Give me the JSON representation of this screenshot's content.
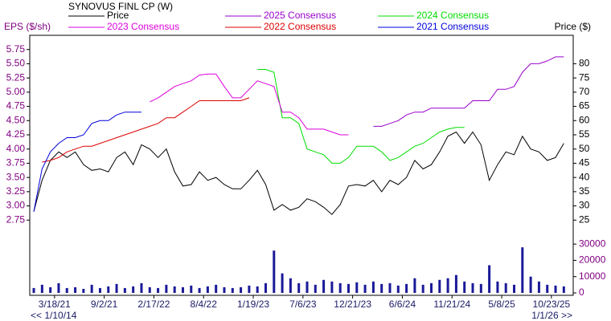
{
  "chart_data": [
    {
      "type": "line",
      "title": "SYNOVUS FINL CP (W)",
      "y_label": "EPS ($/sh)",
      "y2_label": "Price ($)",
      "x": [
        "1/7/21",
        "2/4/21",
        "3/4/21",
        "4/1/21",
        "4/29/21",
        "5/27/21",
        "6/24/21",
        "7/22/21",
        "8/19/21",
        "9/16/21",
        "10/14/21",
        "11/11/21",
        "12/9/21",
        "1/6/22",
        "2/3/22",
        "3/3/22",
        "3/31/22",
        "4/28/22",
        "5/26/22",
        "6/23/22",
        "7/21/22",
        "8/18/22",
        "9/15/22",
        "10/13/22",
        "11/10/22",
        "12/8/22",
        "1/5/23",
        "2/2/23",
        "3/2/23",
        "3/30/23",
        "4/27/23",
        "5/25/23",
        "6/22/23",
        "7/20/23",
        "8/17/23",
        "9/14/23",
        "10/12/23",
        "11/9/23",
        "12/7/23",
        "1/4/24",
        "2/1/24",
        "2/29/24",
        "3/28/24",
        "4/25/24",
        "5/23/24",
        "6/20/24",
        "7/18/24",
        "8/15/24",
        "9/12/24",
        "10/10/24",
        "11/7/24",
        "12/5/24",
        "1/2/25",
        "1/30/25",
        "2/27/25",
        "3/27/25",
        "4/24/25",
        "5/22/25",
        "6/19/25",
        "7/17/25",
        "8/14/25",
        "9/11/25",
        "10/9/25",
        "11/6/25",
        "12/4/25"
      ],
      "xlim": [
        "12/27/20",
        "1/2/26"
      ],
      "xticks": [
        "3/18/21",
        "9/2/21",
        "2/17/22",
        "8/4/22",
        "1/19/23",
        "7/6/23",
        "12/21/23",
        "6/6/24",
        "11/21/24",
        "5/8/25",
        "10/23/25"
      ],
      "ylim": [
        2.5,
        6.0
      ],
      "yticks": [
        2.75,
        {
          "value": 3.0,
          "label": "3.00"
        },
        3.25,
        {
          "value": 3.5,
          "label": "3.50"
        },
        3.75,
        {
          "value": 4.0,
          "label": "4.00"
        },
        4.25,
        {
          "value": 4.5,
          "label": "4.50"
        },
        4.75,
        {
          "value": 5.0,
          "label": "5.00"
        },
        5.25,
        {
          "value": 5.5,
          "label": "5.50"
        },
        5.75
      ],
      "y2lim": [
        20,
        90
      ],
      "y2ticks": [
        25,
        30,
        35,
        40,
        45,
        50,
        55,
        60,
        65,
        70,
        75,
        80
      ],
      "series": [
        {
          "name": "Price",
          "color": "#000000",
          "axis": "y2",
          "values": [
            28,
            39,
            46,
            49,
            47,
            49,
            44.5,
            42.5,
            43,
            42,
            47,
            49,
            44.5,
            51.5,
            50,
            47,
            50,
            42,
            37,
            37.5,
            42,
            39,
            40,
            37.5,
            36,
            36,
            39,
            42.5,
            37.5,
            28.5,
            30.5,
            28.5,
            29.5,
            32.5,
            31.5,
            29.5,
            27,
            30.5,
            37,
            37.5,
            37,
            39,
            35,
            39,
            37.5,
            40,
            46,
            43,
            44.5,
            49,
            54.5,
            56,
            52,
            56,
            51.5,
            39,
            44.5,
            49,
            48,
            54.5,
            50,
            49,
            46,
            47,
            52
          ]
        },
        {
          "name": "2025 Consensus",
          "color": "#9900cc",
          "values": [
            null,
            null,
            null,
            null,
            null,
            null,
            null,
            null,
            null,
            null,
            null,
            null,
            null,
            null,
            null,
            null,
            null,
            null,
            null,
            null,
            null,
            null,
            null,
            null,
            null,
            null,
            null,
            null,
            null,
            null,
            null,
            null,
            null,
            null,
            null,
            null,
            null,
            null,
            null,
            null,
            null,
            4.4,
            4.4,
            4.45,
            4.5,
            4.6,
            4.65,
            4.65,
            4.72,
            4.72,
            4.72,
            4.72,
            4.72,
            4.85,
            4.85,
            4.85,
            5.05,
            5.05,
            5.1,
            5.35,
            5.5,
            5.5,
            5.55,
            5.62,
            5.62
          ]
        },
        {
          "name": "2024 Consensus",
          "color": "#00dd00",
          "values": [
            null,
            null,
            null,
            null,
            null,
            null,
            null,
            null,
            null,
            null,
            null,
            null,
            null,
            null,
            null,
            null,
            null,
            null,
            null,
            null,
            null,
            null,
            null,
            null,
            null,
            null,
            null,
            5.4,
            5.4,
            5.35,
            4.55,
            4.55,
            4.45,
            4.0,
            3.95,
            3.9,
            3.75,
            3.75,
            3.85,
            4.05,
            4.05,
            4.05,
            3.95,
            3.8,
            3.85,
            3.95,
            4.05,
            4.1,
            4.2,
            4.3,
            4.35,
            4.38,
            4.38,
            null,
            null,
            null,
            null,
            null,
            null,
            null,
            null,
            null,
            null,
            null,
            null
          ]
        },
        {
          "name": "2023 Consensus",
          "color": "#dd00dd",
          "values": [
            null,
            null,
            null,
            null,
            null,
            null,
            null,
            null,
            null,
            null,
            null,
            null,
            null,
            null,
            4.83,
            4.9,
            5.0,
            5.1,
            5.15,
            5.2,
            5.3,
            5.32,
            5.32,
            5.1,
            4.9,
            4.9,
            5.05,
            5.2,
            5.15,
            5.1,
            4.65,
            4.65,
            4.55,
            4.35,
            4.35,
            4.35,
            4.3,
            4.25,
            4.25,
            null,
            null,
            null,
            null,
            null,
            null,
            null,
            null,
            null,
            null,
            null,
            null,
            null,
            null,
            null,
            null,
            null,
            null,
            null,
            null,
            null,
            null,
            null,
            null,
            null,
            null
          ]
        },
        {
          "name": "2022 Consensus",
          "color": "#dd0000",
          "values": [
            null,
            3.77,
            3.8,
            3.85,
            3.95,
            4.0,
            4.05,
            4.05,
            4.1,
            4.15,
            4.2,
            4.25,
            4.3,
            4.35,
            4.4,
            4.45,
            4.55,
            4.55,
            4.65,
            4.75,
            4.85,
            4.85,
            4.85,
            4.85,
            4.85,
            4.85,
            4.9,
            null,
            null,
            null,
            null,
            null,
            null,
            null,
            null,
            null,
            null,
            null,
            null,
            null,
            null,
            null,
            null,
            null,
            null,
            null,
            null,
            null,
            null,
            null,
            null,
            null,
            null,
            null,
            null,
            null,
            null,
            null,
            null,
            null,
            null,
            null,
            null,
            null,
            null
          ]
        },
        {
          "name": "2021 Consensus",
          "color": "#0000dd",
          "values": [
            2.9,
            3.65,
            3.95,
            4.1,
            4.2,
            4.2,
            4.25,
            4.45,
            4.5,
            4.5,
            4.6,
            4.65,
            4.65,
            4.65,
            null,
            null,
            null,
            null,
            null,
            null,
            null,
            null,
            null,
            null,
            null,
            null,
            null,
            null,
            null,
            null,
            null,
            null,
            null,
            null,
            null,
            null,
            null,
            null,
            null,
            null,
            null,
            null,
            null,
            null,
            null,
            null,
            null,
            null,
            null,
            null,
            null,
            null,
            null,
            null,
            null,
            null,
            null,
            null,
            null,
            null,
            null,
            null,
            null,
            null,
            null
          ]
        }
      ]
    },
    {
      "type": "bar",
      "color": "#1a1a99",
      "x": [
        "1/7/21",
        "2/4/21",
        "3/4/21",
        "4/1/21",
        "4/29/21",
        "5/27/21",
        "6/24/21",
        "7/22/21",
        "8/19/21",
        "9/16/21",
        "10/14/21",
        "11/11/21",
        "12/9/21",
        "1/6/22",
        "2/3/22",
        "3/3/22",
        "3/31/22",
        "4/28/22",
        "5/26/22",
        "6/23/22",
        "7/21/22",
        "8/18/22",
        "9/15/22",
        "10/13/22",
        "11/10/22",
        "12/8/22",
        "1/5/23",
        "2/2/23",
        "3/2/23",
        "3/30/23",
        "4/27/23",
        "5/25/23",
        "6/22/23",
        "7/20/23",
        "8/17/23",
        "9/14/23",
        "10/12/23",
        "11/9/23",
        "12/7/23",
        "1/4/24",
        "2/1/24",
        "2/29/24",
        "3/28/24",
        "4/25/24",
        "5/23/24",
        "6/20/24",
        "7/18/24",
        "8/15/24",
        "9/12/24",
        "10/10/24",
        "11/7/24",
        "12/5/24",
        "1/2/25",
        "1/30/25",
        "2/27/25",
        "3/27/25",
        "4/24/25",
        "5/22/25",
        "6/19/25",
        "7/17/25",
        "8/14/25",
        "9/11/25",
        "10/9/25",
        "11/6/25",
        "12/4/25"
      ],
      "values": [
        3000,
        5000,
        3500,
        6000,
        3000,
        3500,
        2500,
        5000,
        3000,
        4000,
        5500,
        3000,
        4000,
        6000,
        3500,
        3000,
        5000,
        4000,
        3500,
        4500,
        3000,
        4000,
        5000,
        3500,
        3000,
        3500,
        4500,
        4000,
        6000,
        26000,
        12000,
        9000,
        6000,
        7000,
        5000,
        8000,
        7000,
        6000,
        5500,
        6500,
        5000,
        7000,
        5500,
        6000,
        4500,
        5500,
        9000,
        5000,
        6000,
        8000,
        9000,
        11000,
        7000,
        6000,
        5500,
        17000,
        7000,
        6000,
        5000,
        28000,
        10000,
        7000,
        5000,
        4500,
        4000
      ],
      "ylim": [
        0,
        35000
      ],
      "yticks": [
        0,
        10000,
        20000,
        30000
      ]
    }
  ],
  "nav": {
    "back": "<< 1/10/14",
    "forward": "1/1/26 >>"
  }
}
